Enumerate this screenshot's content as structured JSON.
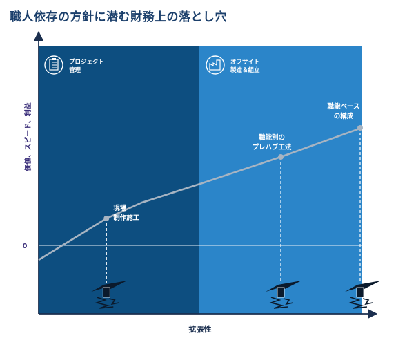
{
  "title": "職人依存の方針に潜む財務上の落とし穴",
  "colors": {
    "panel_left": "#0d4e80",
    "panel_right": "#2b85c9",
    "line": "#a7b4c2",
    "axis": "#1b2f4f",
    "title": "#1b3f6b",
    "ylabel": "#3b2f7a"
  },
  "chart_data": {
    "type": "line",
    "title": "職人依存の方針に潜む財務上の落とし穴",
    "xlabel": "拡張性",
    "ylabel": "価値、スピード、利益",
    "y_tick_labels": [
      "0"
    ],
    "regions": [
      {
        "label_line1": "プロジェクト",
        "label_line2": "管理",
        "icon": "clipboard-icon"
      },
      {
        "label_line1": "オフサイト",
        "label_line2": "製造＆組立",
        "icon": "factory-icon"
      }
    ],
    "series": [
      {
        "x": [
          0,
          0.21,
          0.32,
          0.5,
          0.75,
          1.0
        ],
        "y": [
          -0.21,
          0.39,
          0.62,
          0.89,
          1.28,
          1.7
        ]
      }
    ],
    "annotations": [
      {
        "x": 0.21,
        "y": 0.39,
        "line1": "現場",
        "line2": "制作施工"
      },
      {
        "x": 0.75,
        "y": 1.28,
        "line1": "職能別の",
        "line2": "プレハブ工法"
      },
      {
        "x": 1.0,
        "y": 1.7,
        "line1": "職能ベース",
        "line2": "の構成"
      }
    ],
    "xlim": [
      0,
      1
    ],
    "ylim": [
      -0.8,
      2.4
    ]
  }
}
